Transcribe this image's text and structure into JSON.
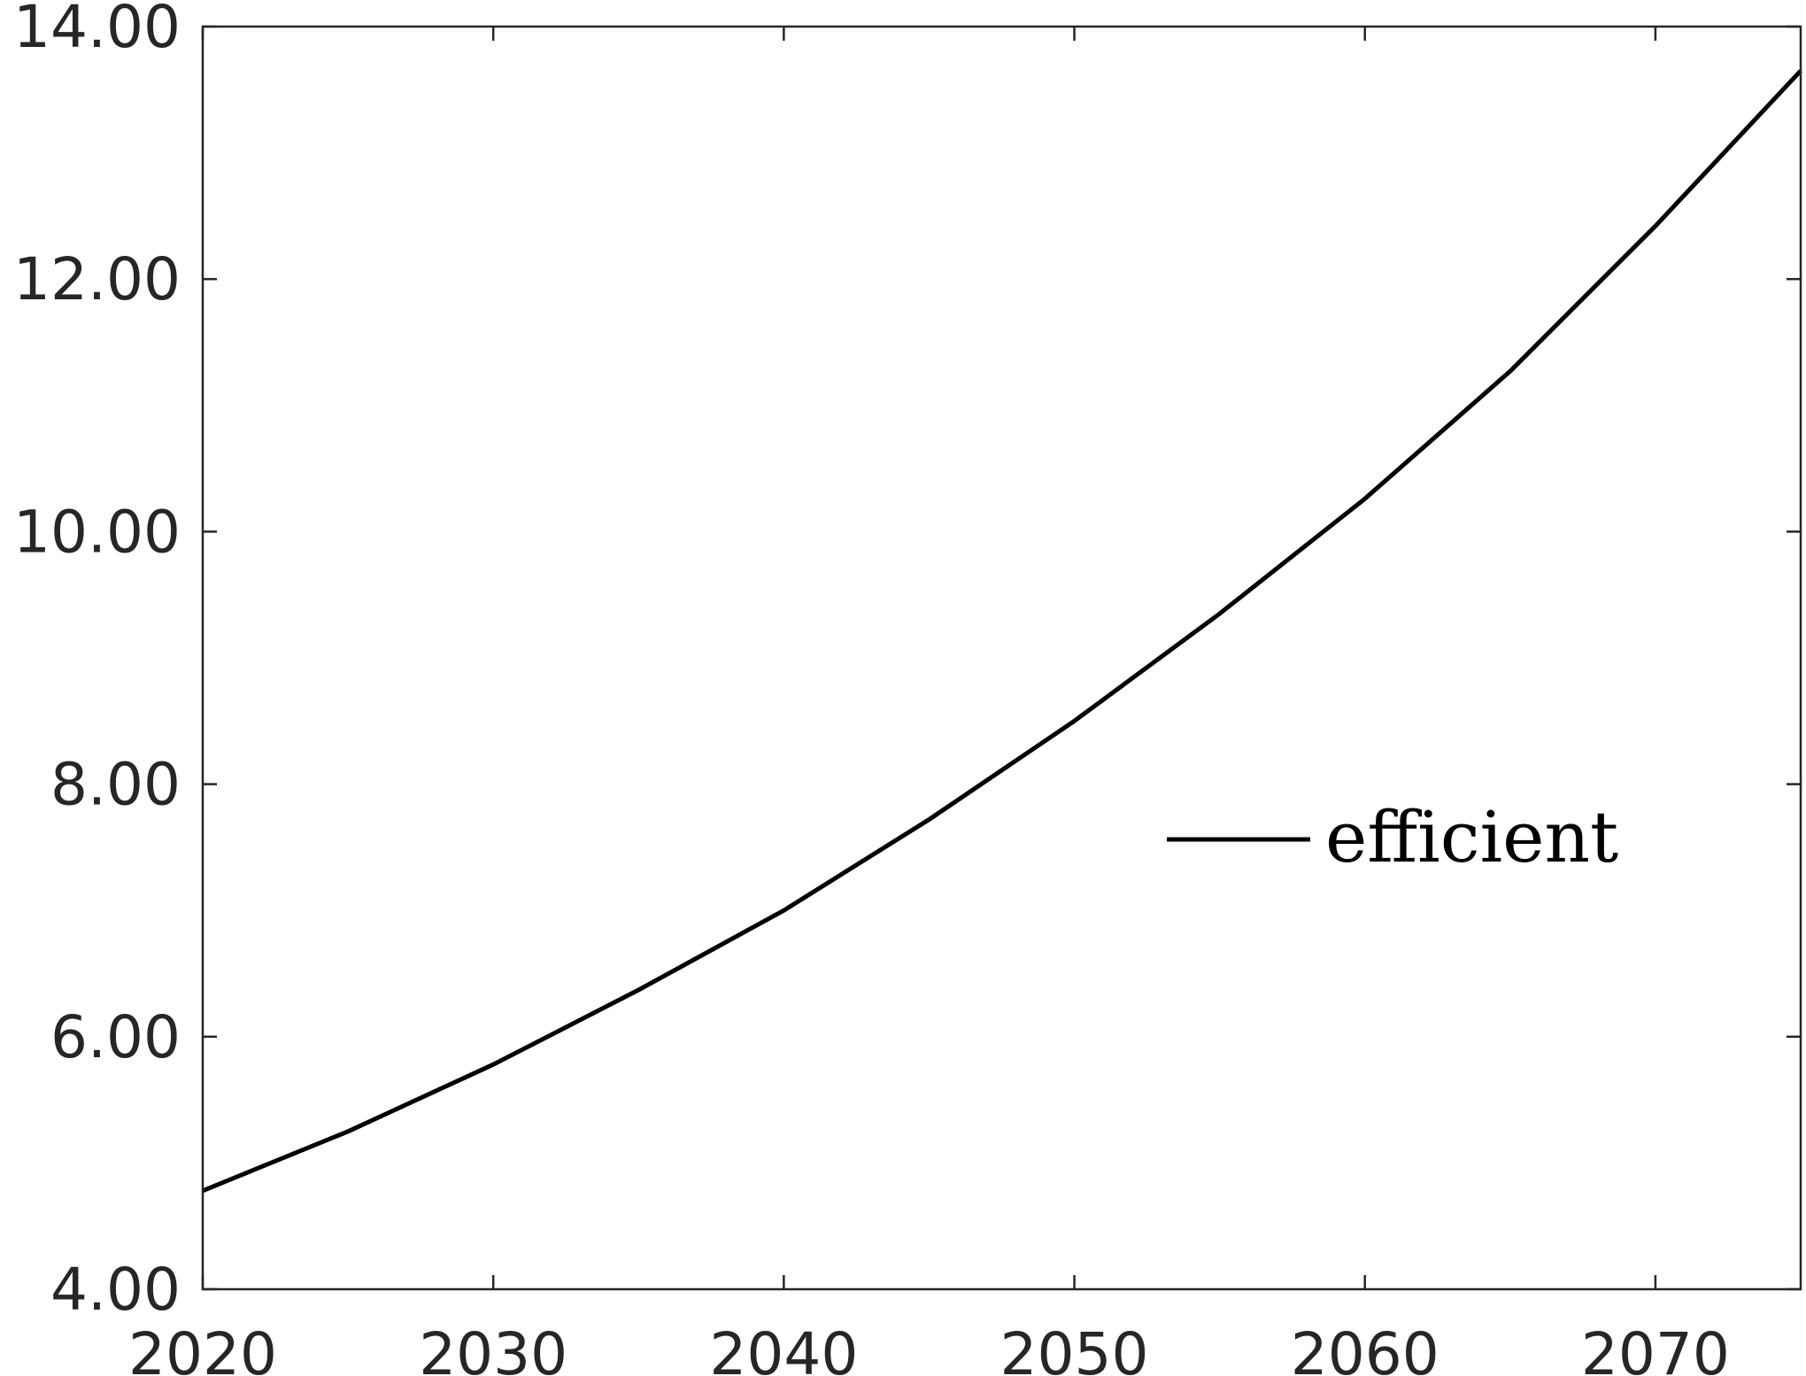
{
  "chart_data": {
    "type": "line",
    "title": "",
    "xlabel": "",
    "ylabel": "",
    "xlim": [
      2020,
      2075
    ],
    "ylim": [
      4,
      14
    ],
    "x_ticks": [
      2020,
      2030,
      2040,
      2050,
      2060,
      2070
    ],
    "x_tick_labels": [
      "2020",
      "2030",
      "2040",
      "2050",
      "2060",
      "2070"
    ],
    "y_ticks": [
      4,
      6,
      8,
      10,
      12,
      14
    ],
    "y_tick_labels": [
      "4.00",
      "6.00",
      "8.00",
      "10.00",
      "12.00",
      "14.00"
    ],
    "grid": false,
    "legend_position": "center-right",
    "series": [
      {
        "name": "efficient",
        "color": "#000000",
        "x": [
          2020,
          2025,
          2030,
          2035,
          2040,
          2045,
          2050,
          2055,
          2060,
          2065,
          2070,
          2075
        ],
        "y": [
          4.78,
          5.25,
          5.78,
          6.37,
          7.0,
          7.72,
          8.5,
          9.35,
          10.26,
          11.27,
          12.42,
          13.65
        ]
      }
    ]
  }
}
